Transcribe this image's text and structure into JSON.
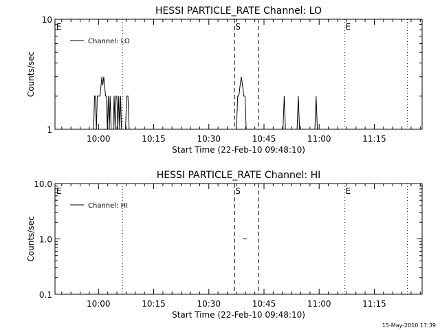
{
  "chart_data": [
    {
      "type": "line",
      "title": "HESSI PARTICLE_RATE Channel: LO",
      "xlabel": "Start Time (22-Feb-10 09:48:10)",
      "ylabel": "Counts/sec",
      "yscale": "log",
      "ylim": [
        1,
        10
      ],
      "xlim": [
        "09:48:10",
        "11:28:00"
      ],
      "yticks": [
        {
          "value": 1,
          "label": "1"
        },
        {
          "value": 10,
          "label": "10"
        }
      ],
      "xticks": [
        {
          "value": "10:00",
          "label": "10:00"
        },
        {
          "value": "10:15",
          "label": "10:15"
        },
        {
          "value": "10:30",
          "label": "10:30"
        },
        {
          "value": "10:45",
          "label": "10:45"
        },
        {
          "value": "11:00",
          "label": "11:00"
        },
        {
          "value": "11:15",
          "label": "11:15"
        }
      ],
      "legend": {
        "label": "Channel: LO",
        "position": "top-left"
      },
      "markers": [
        {
          "label": "E",
          "time": "09:48:10",
          "style": "none"
        },
        {
          "label": "",
          "time": "10:06:30",
          "style": "dotted"
        },
        {
          "label": "S",
          "time": "10:37:00",
          "style": "dashed"
        },
        {
          "label": "",
          "time": "10:43:30",
          "style": "dashed"
        },
        {
          "label": "E",
          "time": "11:07:00",
          "style": "dotted"
        },
        {
          "label": "",
          "time": "11:24:00",
          "style": "dotted"
        }
      ],
      "series": [
        {
          "segments": [
            {
              "x": [
                "09:58:40",
                "09:58:55",
                "09:59:10",
                "09:59:25",
                "09:59:40",
                "09:59:55",
                "10:00:10",
                "10:00:25",
                "10:00:40",
                "10:00:55",
                "10:01:10",
                "10:01:25",
                "10:01:40",
                "10:01:55",
                "10:02:10",
                "10:02:25",
                "10:02:40",
                "10:02:55",
                "10:03:10",
                "10:03:25"
              ],
              "y": [
                1,
                2,
                2,
                1,
                2,
                2,
                2,
                2,
                2.5,
                3,
                2.5,
                3,
                2.5,
                2,
                2,
                1,
                2,
                1,
                2,
                1
              ]
            },
            {
              "x": [
                "10:04:00",
                "10:04:15",
                "10:04:30",
                "10:04:45",
                "10:05:00",
                "10:05:15",
                "10:05:30",
                "10:05:45",
                "10:06:00",
                "10:06:15"
              ],
              "y": [
                1,
                2,
                1,
                2,
                2,
                1,
                2,
                1,
                2,
                1
              ]
            },
            {
              "x": [
                "10:07:20",
                "10:07:40",
                "10:08:00",
                "10:08:20"
              ],
              "y": [
                1,
                2,
                2,
                1
              ]
            },
            {
              "x": [
                "10:37:30",
                "10:37:50",
                "10:38:10",
                "10:38:30",
                "10:38:50",
                "10:39:10",
                "10:39:30",
                "10:39:50",
                "10:40:10",
                "10:40:30"
              ],
              "y": [
                1,
                2,
                2,
                2.5,
                3,
                2.5,
                2,
                2,
                1,
                1
              ]
            },
            {
              "x": [
                "10:50:10",
                "10:50:30",
                "10:50:50"
              ],
              "y": [
                1,
                2,
                1
              ]
            },
            {
              "x": [
                "10:54:00",
                "10:54:20",
                "10:54:40"
              ],
              "y": [
                1,
                2,
                1
              ]
            },
            {
              "x": [
                "10:58:50",
                "10:59:10",
                "10:59:30"
              ],
              "y": [
                1,
                2,
                1
              ]
            }
          ]
        }
      ]
    },
    {
      "type": "line",
      "title": "HESSI PARTICLE_RATE Channel: HI",
      "xlabel": "Start Time (22-Feb-10 09:48:10)",
      "ylabel": "Counts/sec",
      "yscale": "log",
      "ylim": [
        0.1,
        10
      ],
      "xlim": [
        "09:48:10",
        "11:28:00"
      ],
      "yticks": [
        {
          "value": 0.1,
          "label": "0.1"
        },
        {
          "value": 1,
          "label": "1.0"
        },
        {
          "value": 10,
          "label": "10.0"
        }
      ],
      "xticks": [
        {
          "value": "10:00",
          "label": "10:00"
        },
        {
          "value": "10:15",
          "label": "10:15"
        },
        {
          "value": "10:30",
          "label": "10:30"
        },
        {
          "value": "10:45",
          "label": "10:45"
        },
        {
          "value": "11:00",
          "label": "11:00"
        },
        {
          "value": "11:15",
          "label": "11:15"
        }
      ],
      "legend": {
        "label": "Channel: HI",
        "position": "top-left"
      },
      "markers": [
        {
          "label": "E",
          "time": "09:48:10",
          "style": "none"
        },
        {
          "label": "",
          "time": "10:06:30",
          "style": "dotted"
        },
        {
          "label": "S",
          "time": "10:37:00",
          "style": "dashed"
        },
        {
          "label": "",
          "time": "10:43:30",
          "style": "dashed"
        },
        {
          "label": "E",
          "time": "11:07:00",
          "style": "dotted"
        },
        {
          "label": "",
          "time": "11:24:00",
          "style": "dotted"
        }
      ],
      "series": [
        {
          "segments": [
            {
              "x": [
                "10:39:10",
                "10:40:20"
              ],
              "y": [
                1,
                1
              ]
            }
          ]
        }
      ]
    }
  ],
  "footer": "15-May-2010 17:39"
}
